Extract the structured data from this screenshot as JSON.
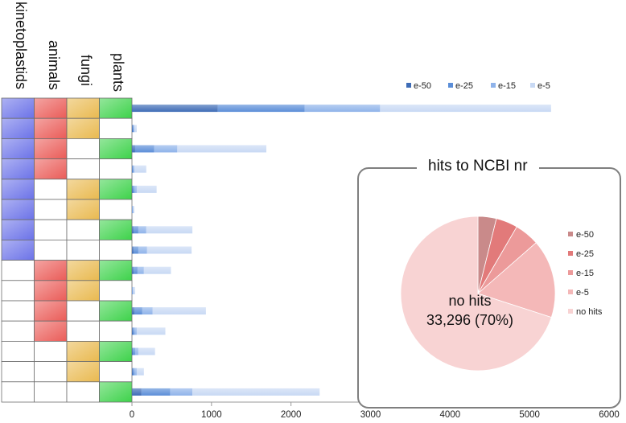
{
  "chart_data": [
    {
      "type": "bar",
      "orientation": "horizontal",
      "stacked": true,
      "membership_columns": [
        "kinetoplastids",
        "animals",
        "fungi",
        "plants"
      ],
      "membership_colors": [
        "#6b72e8",
        "#ea5b57",
        "#e9b94f",
        "#3dd24a"
      ],
      "rows": [
        {
          "member": [
            1,
            1,
            1,
            1
          ],
          "values": [
            1080,
            1090,
            950,
            2150
          ]
        },
        {
          "member": [
            1,
            1,
            1,
            0
          ],
          "values": [
            10,
            10,
            10,
            30
          ]
        },
        {
          "member": [
            1,
            1,
            0,
            1
          ],
          "values": [
            40,
            240,
            290,
            1120
          ]
        },
        {
          "member": [
            1,
            1,
            0,
            0
          ],
          "values": [
            5,
            10,
            15,
            150
          ]
        },
        {
          "member": [
            1,
            0,
            1,
            1
          ],
          "values": [
            10,
            20,
            30,
            250
          ]
        },
        {
          "member": [
            1,
            0,
            1,
            0
          ],
          "values": [
            0,
            5,
            10,
            15
          ]
        },
        {
          "member": [
            1,
            0,
            0,
            1
          ],
          "values": [
            20,
            60,
            100,
            580
          ]
        },
        {
          "member": [
            1,
            0,
            0,
            0
          ],
          "values": [
            20,
            60,
            110,
            560
          ]
        },
        {
          "member": [
            0,
            1,
            1,
            1
          ],
          "values": [
            20,
            50,
            80,
            340
          ]
        },
        {
          "member": [
            0,
            1,
            1,
            0
          ],
          "values": [
            0,
            5,
            10,
            25
          ]
        },
        {
          "member": [
            0,
            1,
            0,
            1
          ],
          "values": [
            30,
            100,
            130,
            670
          ]
        },
        {
          "member": [
            0,
            1,
            0,
            0
          ],
          "values": [
            10,
            20,
            30,
            360
          ]
        },
        {
          "member": [
            0,
            0,
            1,
            1
          ],
          "values": [
            10,
            30,
            40,
            210
          ]
        },
        {
          "member": [
            0,
            0,
            1,
            0
          ],
          "values": [
            10,
            20,
            30,
            90
          ]
        },
        {
          "member": [
            0,
            0,
            0,
            1
          ],
          "values": [
            120,
            360,
            280,
            1600
          ]
        }
      ],
      "series": [
        {
          "name": "e-50",
          "color": "#3e6cb6"
        },
        {
          "name": "e-25",
          "color": "#5b8ed8"
        },
        {
          "name": "e-15",
          "color": "#8fb3ea"
        },
        {
          "name": "e-5",
          "color": "#c8d9f4"
        }
      ],
      "xlim": [
        0,
        6000
      ],
      "xticks": [
        "0",
        "1000",
        "2000",
        "3000",
        "4000",
        "5000",
        "6000"
      ],
      "legend": "top-right"
    },
    {
      "type": "pie",
      "title": "hits to NCBI nr",
      "slices": [
        {
          "name": "e-50",
          "value": 1830,
          "color": "#c98a8a"
        },
        {
          "name": "e-25",
          "value": 2160,
          "color": "#e27a7a"
        },
        {
          "name": "e-15",
          "value": 2460,
          "color": "#ec9a9a"
        },
        {
          "name": "e-5",
          "value": 7820,
          "color": "#f4b8b8"
        },
        {
          "name": "no hits",
          "value": 33296,
          "color": "#f8d3d3"
        }
      ],
      "annotation_line1": "no hits",
      "annotation_line2": "33,296 (70%)",
      "legend": "right"
    }
  ]
}
